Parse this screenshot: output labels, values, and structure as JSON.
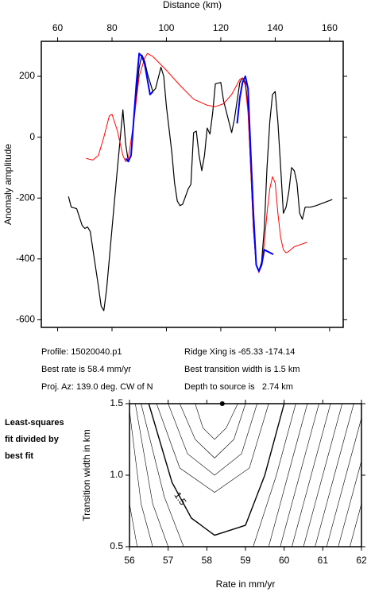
{
  "chart_data": [
    {
      "type": "line",
      "title": "Distance (km)",
      "ylabel": "Anomaly amplitude",
      "xlim": [
        54,
        165
      ],
      "xticks": [
        60,
        80,
        100,
        120,
        140,
        160
      ],
      "ylim": [
        -625,
        315
      ],
      "yticks": [
        -600,
        -400,
        -200,
        0,
        200
      ],
      "series": [
        {
          "color": "#000000",
          "width": 1.2,
          "x": [
            64,
            65,
            67,
            69,
            70,
            71,
            72,
            73,
            75,
            76,
            77,
            78,
            80,
            82,
            84,
            85,
            86,
            87,
            88,
            90,
            91,
            92,
            93,
            95,
            96,
            98,
            99,
            100,
            102,
            103,
            104,
            105,
            106,
            108,
            109,
            110,
            111,
            112,
            113,
            114,
            115,
            116,
            117,
            118,
            120,
            121,
            123,
            124,
            125,
            126,
            127,
            128,
            129,
            130,
            131,
            132,
            133,
            134,
            135,
            136,
            137,
            138,
            139,
            140,
            141,
            142,
            143,
            144,
            145,
            146,
            147,
            148,
            149,
            150,
            151,
            153,
            155,
            161
          ],
          "values": [
            -195,
            -230,
            -235,
            -290,
            -300,
            -295,
            -310,
            -370,
            -490,
            -555,
            -570,
            -500,
            -300,
            -100,
            90,
            -20,
            -80,
            -60,
            60,
            230,
            270,
            250,
            210,
            150,
            160,
            230,
            200,
            100,
            -50,
            -150,
            -210,
            -225,
            -220,
            -170,
            -155,
            15,
            20,
            -60,
            -110,
            -60,
            30,
            10,
            80,
            175,
            180,
            120,
            50,
            15,
            60,
            120,
            180,
            195,
            180,
            100,
            -100,
            -300,
            -420,
            -440,
            -410,
            -300,
            -100,
            50,
            140,
            150,
            50,
            -100,
            -250,
            -230,
            -180,
            -100,
            -110,
            -150,
            -250,
            -270,
            -230,
            -230,
            -225,
            -205
          ]
        },
        {
          "color": "#ff0000",
          "width": 1,
          "x": [
            70.5,
            73,
            75,
            77,
            79,
            80,
            82,
            84,
            85,
            86,
            88,
            90,
            92,
            93,
            95,
            100,
            105,
            110,
            115,
            118,
            121,
            124,
            127,
            128,
            129,
            130,
            131,
            132,
            133,
            134,
            135,
            136,
            137,
            138,
            139,
            140,
            141,
            142,
            143,
            144,
            145,
            147,
            151.8
          ],
          "values": [
            -70,
            -75,
            -60,
            0,
            70,
            75,
            20,
            -60,
            -80,
            -70,
            50,
            200,
            260,
            275,
            265,
            220,
            170,
            125,
            105,
            100,
            110,
            140,
            190,
            195,
            170,
            80,
            -100,
            -300,
            -420,
            -445,
            -420,
            -350,
            -250,
            -170,
            -130,
            -150,
            -250,
            -330,
            -370,
            -380,
            -375,
            -360,
            -345
          ]
        },
        {
          "color": "#0000ff",
          "width": 2,
          "x": [
            85,
            86,
            87,
            89,
            90,
            91,
            92,
            94,
            95,
            110,
            126,
            127,
            128,
            129,
            130,
            131,
            132,
            133,
            134,
            135,
            136,
            139.3
          ],
          "values": [
            -70,
            -80,
            -60,
            180,
            275,
            265,
            240,
            140,
            150,
            null,
            45,
            130,
            180,
            200,
            160,
            -50,
            -250,
            -420,
            -440,
            -420,
            -370,
            -385
          ]
        }
      ],
      "annotations": [
        "Profile: 15020040.p1",
        "Best rate is 58.4 mm/yr",
        "Proj. Az: 139.0 deg. CW of N",
        "Ridge Xing is -65.33 -174.14",
        "Best transition width is 1.5 km",
        "Depth to source is   2.74 km"
      ]
    },
    {
      "type": "contour",
      "title": [
        "Least-squares",
        "fit divided by",
        "best fit"
      ],
      "xlabel": "Rate in mm/yr",
      "ylabel": "Transition width in km",
      "xlim": [
        56,
        62
      ],
      "xticks": [
        56,
        57,
        58,
        59,
        60,
        61,
        62
      ],
      "ylim": [
        0.5,
        1.5
      ],
      "yticks": [
        0.5,
        {
          "value": 1.0,
          "label": "1.0"
        },
        1.5
      ],
      "best_fit": {
        "x": 58.4,
        "y": 1.5
      },
      "contours": [
        {
          "x": [
            57.7,
            57.9,
            58.2,
            58.5,
            58.8
          ],
          "y": [
            1.5,
            1.33,
            1.25,
            1.33,
            1.5
          ]
        },
        {
          "x": [
            57.3,
            57.7,
            58.2,
            58.7,
            59.0
          ],
          "y": [
            1.5,
            1.25,
            1.12,
            1.25,
            1.5
          ]
        },
        {
          "x": [
            57.0,
            57.5,
            58.2,
            58.9,
            59.3
          ],
          "y": [
            1.5,
            1.15,
            1.0,
            1.15,
            1.5
          ]
        },
        {
          "x": [
            56.7,
            57.3,
            58.2,
            59.1,
            59.6
          ],
          "y": [
            1.5,
            1.05,
            0.88,
            1.05,
            1.5
          ]
        },
        {
          "level": 1.5,
          "x": [
            56.5,
            57.1,
            57.6,
            58.2,
            59.0,
            59.5,
            60.0
          ],
          "y": [
            1.5,
            0.95,
            0.7,
            0.58,
            0.65,
            1.0,
            1.5
          ]
        },
        {
          "x": [
            56.3,
            56.9,
            57.4
          ],
          "y": [
            1.5,
            0.85,
            0.5
          ]
        },
        {
          "x": [
            56.15,
            56.6,
            57.0
          ],
          "y": [
            1.5,
            0.8,
            0.5
          ]
        },
        {
          "x": [
            56.0,
            56.3,
            56.6
          ],
          "y": [
            1.45,
            0.8,
            0.5
          ]
        },
        {
          "x": [
            56.0,
            56.2
          ],
          "y": [
            0.8,
            0.5
          ]
        },
        {
          "x": [
            59.2,
            59.8,
            60.3
          ],
          "y": [
            0.5,
            1.0,
            1.5
          ]
        },
        {
          "x": [
            59.6,
            60.1,
            60.6
          ],
          "y": [
            0.5,
            1.0,
            1.5
          ]
        },
        {
          "x": [
            59.9,
            60.4,
            60.9
          ],
          "y": [
            0.5,
            1.0,
            1.5
          ]
        },
        {
          "x": [
            60.2,
            60.7,
            61.2
          ],
          "y": [
            0.5,
            1.0,
            1.5
          ]
        },
        {
          "x": [
            60.5,
            61.0,
            61.5
          ],
          "y": [
            0.5,
            1.0,
            1.5
          ]
        },
        {
          "x": [
            60.8,
            61.3,
            61.8
          ],
          "y": [
            0.5,
            1.0,
            1.5
          ]
        },
        {
          "x": [
            61.1,
            61.6,
            62.0
          ],
          "y": [
            0.5,
            1.0,
            1.4
          ]
        },
        {
          "x": [
            61.4,
            61.9,
            62.0
          ],
          "y": [
            0.5,
            1.0,
            1.1
          ]
        },
        {
          "x": [
            61.7,
            62.0
          ],
          "y": [
            0.5,
            0.8
          ]
        }
      ]
    }
  ]
}
